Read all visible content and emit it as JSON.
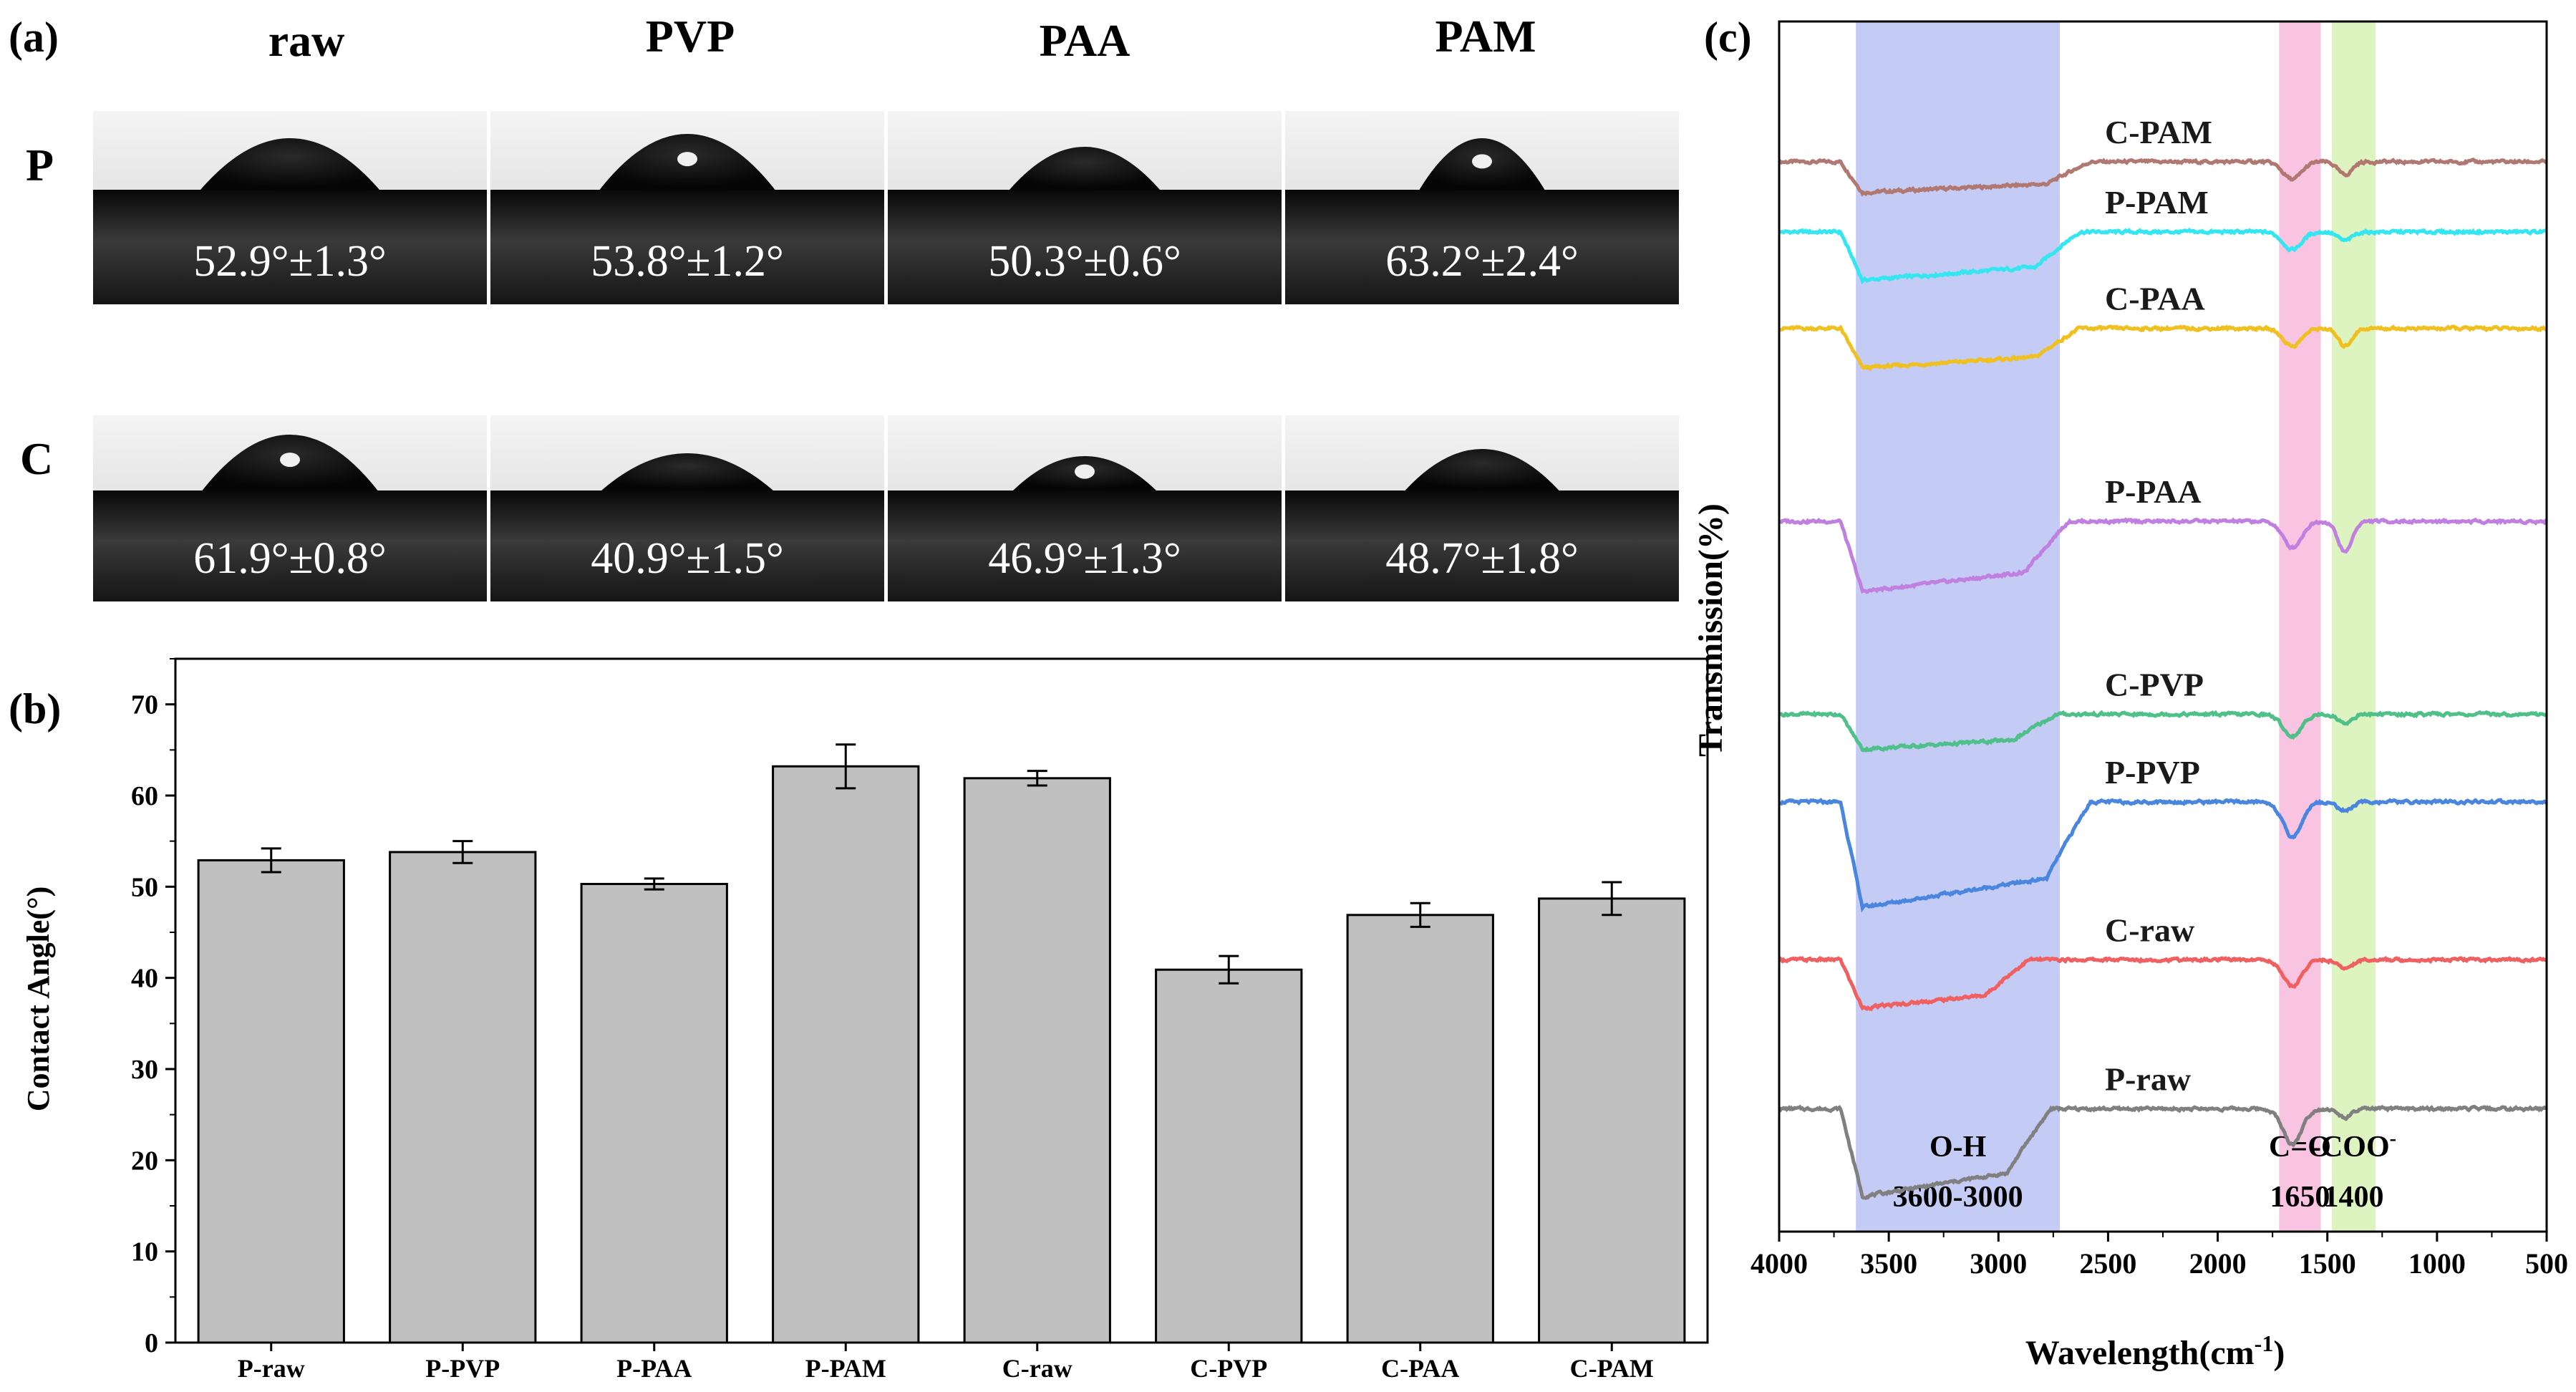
{
  "panel_a": {
    "label": "(a)",
    "columns": [
      "raw",
      "PVP",
      "PAA",
      "PAM"
    ],
    "rows": [
      {
        "name": "P",
        "angles": [
          "52.9°±1.3°",
          "53.8°±1.2°",
          "50.3°±0.6°",
          "63.2°±2.4°"
        ]
      },
      {
        "name": "C",
        "angles": [
          "61.9°±0.8°",
          "40.9°±1.5°",
          "46.9°±1.3°",
          "48.7°±1.8°"
        ]
      }
    ]
  },
  "chart_data": [
    {
      "panel": "(b)",
      "type": "bar",
      "title": "",
      "xlabel": "",
      "ylabel": "Contact Angle(°)",
      "categories": [
        "P-raw",
        "P-PVP",
        "P-PAA",
        "P-PAM",
        "C-raw",
        "C-PVP",
        "C-PAA",
        "C-PAM"
      ],
      "values": [
        52.9,
        53.8,
        50.3,
        63.2,
        61.9,
        40.9,
        46.9,
        48.7
      ],
      "errors": [
        1.3,
        1.2,
        0.6,
        2.4,
        0.8,
        1.5,
        1.3,
        1.8
      ],
      "ylim": [
        0,
        75
      ],
      "yticks": [
        0,
        10,
        20,
        30,
        40,
        50,
        60,
        70
      ],
      "bar_color": "#c0c0c0"
    },
    {
      "panel": "(c)",
      "type": "line",
      "xlabel": "Wavelength(cm",
      "xlabel_sup": "-1",
      "xlabel_end": ")",
      "ylabel": "Transmission(%)",
      "xlim": [
        4000,
        500
      ],
      "xticks": [
        4000,
        3500,
        3000,
        2500,
        2000,
        1500,
        1000,
        500
      ],
      "bands": [
        {
          "name": "O-H",
          "range_label": "3600-3000",
          "from": 3650,
          "to": 2720,
          "color": "#c4cbf5"
        },
        {
          "name": "C=O",
          "range_label": "1650",
          "from": 1720,
          "to": 1530,
          "color": "#f9c3e2"
        },
        {
          "name": "-COO",
          "name_sup": "-",
          "range_label": "1400",
          "from": 1480,
          "to": 1280,
          "color": "#def4c0"
        }
      ],
      "series": [
        {
          "name": "C-PAM",
          "color": "#b07870",
          "offset": 10.2,
          "amp": 0.35,
          "oh_depth": 0.35,
          "oh_end": 2700,
          "co_depth": 0.2,
          "coo_depth": 0.15
        },
        {
          "name": "P-PAM",
          "color": "#33e6f0",
          "offset": 9.4,
          "amp": 0.5,
          "oh_depth": 0.55,
          "oh_end": 2750,
          "co_depth": 0.2,
          "coo_depth": 0.1
        },
        {
          "name": "C-PAA",
          "color": "#f0c020",
          "offset": 8.3,
          "amp": 0.4,
          "oh_depth": 0.45,
          "oh_end": 2750,
          "co_depth": 0.2,
          "coo_depth": 0.2
        },
        {
          "name": "P-PAA",
          "color": "#c080e0",
          "offset": 6.1,
          "amp": 0.6,
          "oh_depth": 0.8,
          "oh_end": 2800,
          "co_depth": 0.3,
          "coo_depth": 0.35
        },
        {
          "name": "C-PVP",
          "color": "#50c08a",
          "offset": 3.9,
          "amp": 0.4,
          "oh_depth": 0.4,
          "oh_end": 2850,
          "co_depth": 0.25,
          "coo_depth": 0.1
        },
        {
          "name": "P-PVP",
          "color": "#4a86e0",
          "offset": 2.9,
          "amp": 0.7,
          "oh_depth": 1.2,
          "oh_end": 2700,
          "co_depth": 0.4,
          "coo_depth": 0.1
        },
        {
          "name": "C-raw",
          "color": "#f06060",
          "offset": 1.1,
          "amp": 0.5,
          "oh_depth": 0.55,
          "oh_end": 2980,
          "co_depth": 0.3,
          "coo_depth": 0.1
        },
        {
          "name": "P-raw",
          "color": "#808080",
          "offset": -0.6,
          "amp": 0.7,
          "oh_depth": 1.0,
          "oh_end": 2880,
          "co_depth": 0.4,
          "coo_depth": 0.1
        }
      ]
    }
  ]
}
